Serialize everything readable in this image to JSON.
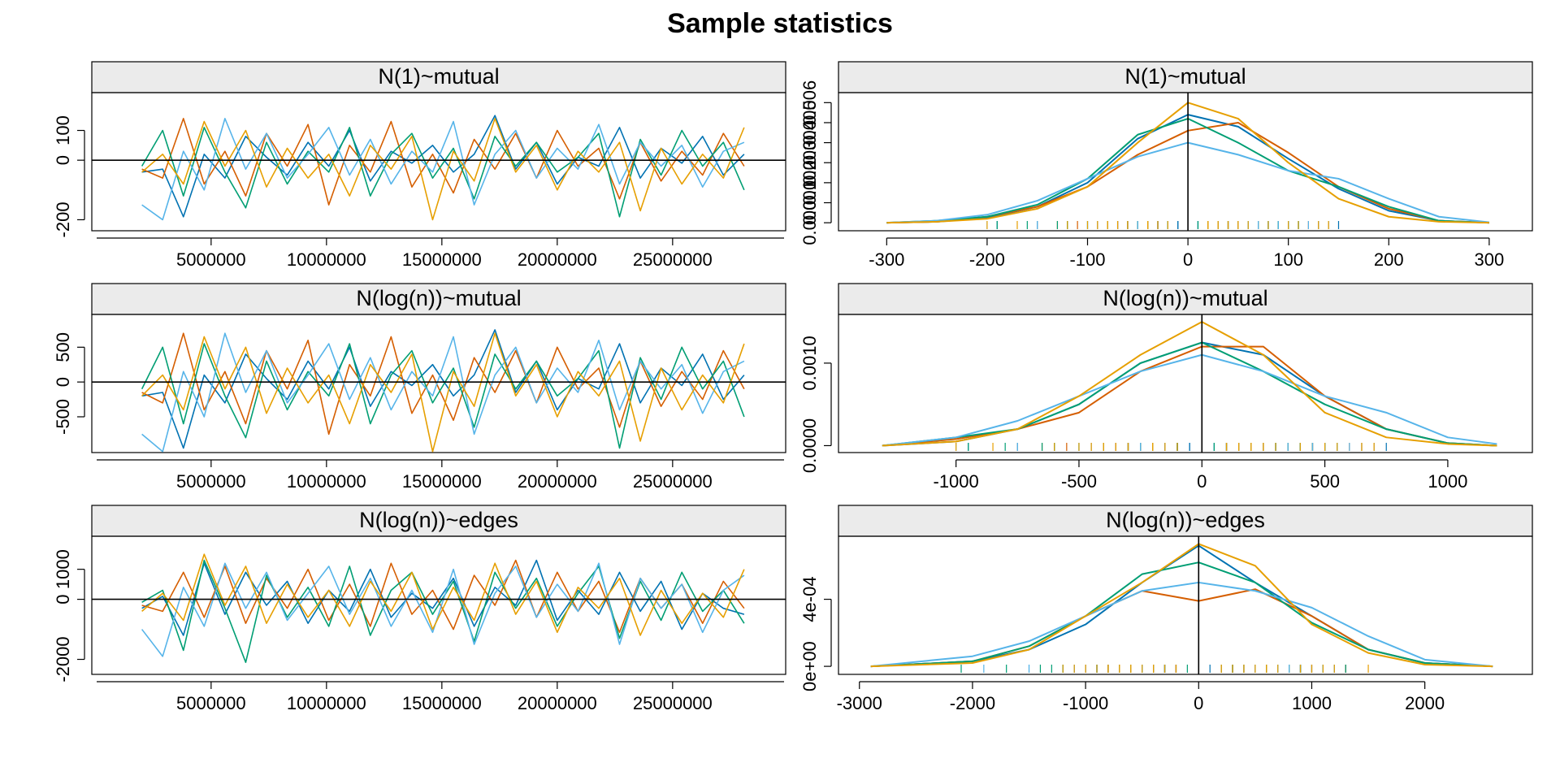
{
  "title": "Sample statistics",
  "chart_data": [
    {
      "type": "line",
      "title": "N(1)~mutual",
      "x": [
        2000000,
        2900000,
        3800000,
        4700000,
        5600000,
        6500000,
        7400000,
        8300000,
        9200000,
        10100000,
        11000000,
        11900000,
        12800000,
        13700000,
        14600000,
        15500000,
        16400000,
        17300000,
        18200000,
        19100000,
        20000000,
        20900000,
        21800000,
        22700000,
        23600000,
        24500000,
        25400000,
        26300000,
        27200000,
        28100000
      ],
      "series": [
        {
          "color": "#0072B2",
          "values": [
            -40,
            -30,
            -190,
            20,
            -60,
            80,
            10,
            -50,
            60,
            -20,
            100,
            -70,
            30,
            -10,
            50,
            -40,
            20,
            150,
            -30,
            60,
            -80,
            10,
            -20,
            110,
            -60,
            40,
            -10,
            80,
            -50,
            20
          ]
        },
        {
          "color": "#D55E00",
          "values": [
            -30,
            -60,
            140,
            -80,
            30,
            -120,
            90,
            -20,
            120,
            -150,
            50,
            -40,
            130,
            -90,
            20,
            -110,
            70,
            -30,
            90,
            -60,
            100,
            -20,
            40,
            -130,
            60,
            -70,
            30,
            -50,
            90,
            -20
          ]
        },
        {
          "color": "#009E73",
          "values": [
            -20,
            100,
            -120,
            110,
            -40,
            -160,
            60,
            -80,
            30,
            -40,
            110,
            -120,
            20,
            90,
            -60,
            40,
            -130,
            80,
            -20,
            60,
            -40,
            10,
            90,
            -190,
            70,
            -50,
            100,
            -20,
            60,
            -100
          ]
        },
        {
          "color": "#56B4E9",
          "values": [
            -150,
            -200,
            30,
            -100,
            140,
            -30,
            90,
            -60,
            20,
            110,
            -50,
            70,
            -80,
            30,
            -40,
            130,
            -150,
            20,
            100,
            -60,
            40,
            -30,
            120,
            -80,
            60,
            -20,
            50,
            -90,
            30,
            60
          ]
        },
        {
          "color": "#E69F00",
          "values": [
            -40,
            20,
            -80,
            130,
            -20,
            100,
            -90,
            40,
            -60,
            20,
            -120,
            50,
            -30,
            80,
            -200,
            30,
            -70,
            140,
            -40,
            50,
            -100,
            30,
            -40,
            60,
            -170,
            40,
            -80,
            20,
            -60,
            110
          ]
        }
      ],
      "xlim": [
        -170000,
        29900000
      ],
      "xticks": [
        5000000,
        10000000,
        15000000,
        20000000,
        25000000
      ],
      "ylim": [
        -237,
        227
      ],
      "yticks": [
        -200,
        0,
        100
      ],
      "refline": 0
    },
    {
      "type": "density",
      "title": "N(1)~mutual",
      "x": [
        -300,
        -250,
        -200,
        -150,
        -100,
        -50,
        0,
        50,
        100,
        150,
        200,
        250,
        300
      ],
      "series": [
        {
          "color": "#0072B2",
          "values": [
            0,
            5e-05,
            0.00025,
            0.0008,
            0.002,
            0.0042,
            0.0054,
            0.0048,
            0.0032,
            0.0017,
            0.0006,
            0.0001,
            0
          ]
        },
        {
          "color": "#D55E00",
          "values": [
            0,
            5e-05,
            0.0003,
            0.0008,
            0.0018,
            0.0034,
            0.0046,
            0.005,
            0.0035,
            0.0018,
            0.0007,
            0.0001,
            0
          ]
        },
        {
          "color": "#009E73",
          "values": [
            0,
            0.0001,
            0.0003,
            0.0009,
            0.0022,
            0.0044,
            0.0052,
            0.004,
            0.0026,
            0.0018,
            0.0008,
            0.0001,
            0
          ]
        },
        {
          "color": "#56B4E9",
          "values": [
            0,
            0.0001,
            0.0004,
            0.0011,
            0.0022,
            0.0033,
            0.004,
            0.0034,
            0.0026,
            0.0022,
            0.0012,
            0.0003,
            2e-05
          ]
        },
        {
          "color": "#E69F00",
          "values": [
            0,
            5e-05,
            0.0002,
            0.0007,
            0.0018,
            0.004,
            0.006,
            0.0052,
            0.003,
            0.0012,
            0.0003,
            5e-05,
            0
          ]
        }
      ],
      "xlim": [
        -348,
        343
      ],
      "xticks": [
        -300,
        -200,
        -100,
        0,
        100,
        200,
        300
      ],
      "ylim": [
        -0.0004,
        0.0065
      ],
      "yticks": [
        {
          "value": 0,
          "label": "0.000"
        },
        {
          "value": 0.001,
          "label": "0.001"
        },
        {
          "value": 0.002,
          "label": "0.002"
        },
        {
          "value": 0.003,
          "label": "0.003"
        },
        {
          "value": 0.004,
          "label": "0.004"
        },
        {
          "value": 0.005,
          "label": "0.005"
        },
        {
          "value": 0.006,
          "label": "0.006"
        }
      ],
      "refline": 0
    },
    {
      "type": "line",
      "title": "N(log(n))~mutual",
      "x": [
        2000000,
        2900000,
        3800000,
        4700000,
        5600000,
        6500000,
        7400000,
        8300000,
        9200000,
        10100000,
        11000000,
        11900000,
        12800000,
        13700000,
        14600000,
        15500000,
        16400000,
        17300000,
        18200000,
        19100000,
        20000000,
        20900000,
        21800000,
        22700000,
        23600000,
        24500000,
        25400000,
        26300000,
        27200000,
        28100000
      ],
      "series": [
        {
          "color": "#0072B2",
          "values": [
            -200,
            -150,
            -950,
            100,
            -300,
            400,
            50,
            -250,
            300,
            -100,
            500,
            -350,
            150,
            -50,
            250,
            -200,
            100,
            750,
            -150,
            300,
            -400,
            50,
            -100,
            550,
            -300,
            200,
            -50,
            400,
            -250,
            100
          ]
        },
        {
          "color": "#D55E00",
          "values": [
            -150,
            -300,
            700,
            -400,
            150,
            -600,
            450,
            -100,
            600,
            -750,
            250,
            -200,
            650,
            -450,
            100,
            -550,
            350,
            -150,
            450,
            -300,
            500,
            -100,
            200,
            -650,
            300,
            -350,
            150,
            -250,
            450,
            -100
          ]
        },
        {
          "color": "#009E73",
          "values": [
            -100,
            500,
            -600,
            550,
            -200,
            -800,
            300,
            -400,
            150,
            -200,
            550,
            -600,
            100,
            450,
            -300,
            200,
            -650,
            400,
            -100,
            300,
            -200,
            50,
            450,
            -950,
            350,
            -250,
            500,
            -100,
            300,
            -500
          ]
        },
        {
          "color": "#56B4E9",
          "values": [
            -750,
            -1000,
            150,
            -500,
            700,
            -150,
            450,
            -300,
            100,
            550,
            -250,
            350,
            -400,
            150,
            -200,
            650,
            -750,
            100,
            500,
            -300,
            200,
            -150,
            600,
            -400,
            300,
            -100,
            250,
            -450,
            150,
            300
          ]
        },
        {
          "color": "#E69F00",
          "values": [
            -200,
            100,
            -400,
            650,
            -100,
            500,
            -450,
            200,
            -300,
            100,
            -600,
            250,
            -150,
            400,
            -1000,
            150,
            -350,
            700,
            -200,
            250,
            -500,
            150,
            -200,
            300,
            -850,
            200,
            -400,
            100,
            -300,
            550
          ]
        }
      ],
      "xlim": [
        -170000,
        29900000
      ],
      "xticks": [
        5000000,
        10000000,
        15000000,
        20000000,
        25000000
      ],
      "ylim": [
        -1014,
        971
      ],
      "yticks": [
        -500,
        0,
        500
      ],
      "refline": 0
    },
    {
      "type": "density",
      "title": "N(log(n))~mutual",
      "x": [
        -1300,
        -1000,
        -750,
        -500,
        -250,
        0,
        250,
        500,
        750,
        1000,
        1200
      ],
      "series": [
        {
          "color": "#0072B2",
          "values": [
            0,
            5e-05,
            0.0002,
            0.0005,
            0.001,
            0.00125,
            0.0011,
            0.0006,
            0.0002,
            3e-05,
            0
          ]
        },
        {
          "color": "#D55E00",
          "values": [
            0,
            8e-05,
            0.0002,
            0.0004,
            0.0009,
            0.0012,
            0.0012,
            0.0006,
            0.0002,
            3e-05,
            0
          ]
        },
        {
          "color": "#009E73",
          "values": [
            0,
            0.0001,
            0.0002,
            0.0005,
            0.001,
            0.00125,
            0.0009,
            0.0005,
            0.0002,
            3e-05,
            0
          ]
        },
        {
          "color": "#56B4E9",
          "values": [
            0,
            0.0001,
            0.0003,
            0.0006,
            0.0009,
            0.0011,
            0.0009,
            0.0006,
            0.0004,
            0.0001,
            2e-05
          ]
        },
        {
          "color": "#E69F00",
          "values": [
            0,
            5e-05,
            0.0002,
            0.0006,
            0.0011,
            0.0015,
            0.0011,
            0.0004,
            0.0001,
            2e-05,
            0
          ]
        }
      ],
      "xlim": [
        -1478,
        1344
      ],
      "xticks": [
        -1000,
        -500,
        0,
        500,
        1000
      ],
      "ylim": [
        -8.4e-05,
        0.00159
      ],
      "yticks": [
        {
          "value": 0,
          "label": "0.0000"
        },
        {
          "value": 0.001,
          "label": "0.0010"
        }
      ],
      "refline": 0
    },
    {
      "type": "line",
      "title": "N(log(n))~edges",
      "x": [
        2000000,
        2900000,
        3800000,
        4700000,
        5600000,
        6500000,
        7400000,
        8300000,
        9200000,
        10100000,
        11000000,
        11900000,
        12800000,
        13700000,
        14600000,
        15500000,
        16400000,
        17300000,
        18200000,
        19100000,
        20000000,
        20900000,
        21800000,
        22700000,
        23600000,
        24500000,
        25400000,
        26300000,
        27200000,
        28100000
      ],
      "series": [
        {
          "color": "#0072B2",
          "values": [
            -300,
            100,
            -1200,
            1200,
            -500,
            900,
            -200,
            600,
            -800,
            300,
            -400,
            1000,
            -600,
            200,
            -300,
            700,
            -900,
            400,
            -200,
            1300,
            -700,
            300,
            -500,
            900,
            -400,
            600,
            -1000,
            200,
            -300,
            -500
          ]
        },
        {
          "color": "#D55E00",
          "values": [
            -200,
            -400,
            900,
            -600,
            1100,
            -800,
            700,
            -300,
            1000,
            -700,
            500,
            -900,
            1200,
            -500,
            300,
            -1000,
            800,
            -200,
            1300,
            -600,
            900,
            -400,
            600,
            -1100,
            700,
            -300,
            500,
            -800,
            600,
            -300
          ]
        },
        {
          "color": "#009E73",
          "values": [
            -100,
            300,
            -1700,
            1300,
            -300,
            -2100,
            800,
            -600,
            400,
            -900,
            1100,
            -1200,
            300,
            900,
            -500,
            600,
            -1400,
            900,
            -300,
            700,
            -900,
            200,
            1100,
            -1300,
            600,
            -700,
            900,
            -400,
            300,
            -800
          ]
        },
        {
          "color": "#56B4E9",
          "values": [
            -1000,
            -1900,
            400,
            -900,
            1200,
            -300,
            900,
            -700,
            200,
            1100,
            -500,
            700,
            -900,
            300,
            -1100,
            1000,
            -1500,
            200,
            1100,
            -600,
            500,
            -400,
            1200,
            -1500,
            700,
            -300,
            500,
            -1100,
            300,
            800
          ]
        },
        {
          "color": "#E69F00",
          "values": [
            -400,
            200,
            -700,
            1500,
            -200,
            1100,
            -800,
            500,
            -600,
            300,
            -900,
            600,
            -400,
            900,
            -1000,
            400,
            -700,
            1200,
            -500,
            600,
            -1100,
            400,
            -300,
            700,
            -1200,
            300,
            -800,
            200,
            -600,
            1000
          ]
        }
      ],
      "xlim": [
        -170000,
        29900000
      ],
      "xticks": [
        5000000,
        10000000,
        15000000,
        20000000,
        25000000
      ],
      "ylim": [
        -2500,
        2100
      ],
      "yticks": [
        -2000,
        0,
        1000
      ],
      "refline": 0
    },
    {
      "type": "density",
      "title": "N(log(n))~edges",
      "x": [
        -2900,
        -2000,
        -1500,
        -1000,
        -500,
        0,
        500,
        1000,
        1500,
        2000,
        2600
      ],
      "series": [
        {
          "color": "#0072B2",
          "values": [
            0,
            3e-05,
            0.0001,
            0.00025,
            0.0005,
            0.00072,
            0.0005,
            0.0003,
            0.0001,
            2e-05,
            0
          ]
        },
        {
          "color": "#D55E00",
          "values": [
            0,
            3e-05,
            0.00012,
            0.0003,
            0.00045,
            0.00039,
            0.00046,
            0.0003,
            0.0001,
            2e-05,
            0
          ]
        },
        {
          "color": "#009E73",
          "values": [
            0,
            3e-05,
            0.00012,
            0.0003,
            0.00055,
            0.00062,
            0.0005,
            0.00026,
            0.0001,
            2e-05,
            0
          ]
        },
        {
          "color": "#56B4E9",
          "values": [
            0,
            6e-05,
            0.00015,
            0.0003,
            0.00045,
            0.0005,
            0.00045,
            0.00035,
            0.00018,
            4e-05,
            0
          ]
        },
        {
          "color": "#E69F00",
          "values": [
            0,
            2e-05,
            0.0001,
            0.0003,
            0.0005,
            0.00073,
            0.0006,
            0.00025,
            8e-05,
            1e-05,
            0
          ]
        }
      ],
      "xlim": [
        -3185,
        2951
      ],
      "xticks": [
        -3000,
        -2000,
        -1000,
        0,
        1000,
        2000
      ],
      "ylim": [
        -4.8e-05,
        0.000776
      ],
      "yticks": [
        {
          "value": 0,
          "label": "0e+00"
        },
        {
          "value": 0.0004,
          "label": "4e-04"
        }
      ],
      "refline": 0
    }
  ]
}
